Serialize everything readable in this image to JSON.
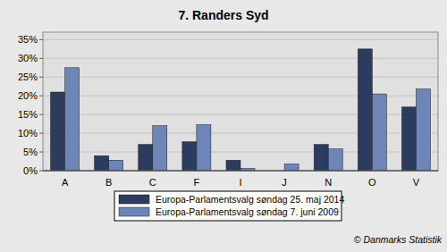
{
  "chart_data": {
    "type": "bar",
    "title": "7. Randers Syd",
    "categories": [
      "A",
      "B",
      "C",
      "F",
      "I",
      "J",
      "N",
      "O",
      "V"
    ],
    "series": [
      {
        "name": "Europa-Parlamentsvalg søndag  25. maj 2014",
        "color": "#2c3c5e",
        "values": [
          21,
          4,
          7,
          7.7,
          2.8,
          0,
          7,
          32.5,
          17
        ]
      },
      {
        "name": "Europa-Parlamentsvalg søndag  7. juni 2009",
        "color": "#6e85b7",
        "values": [
          27.5,
          2.8,
          12,
          12.3,
          0.6,
          1.8,
          5.8,
          20.5,
          21.8
        ]
      }
    ],
    "ylim": [
      0,
      37
    ],
    "yticks": [
      {
        "value": 0,
        "label": "0%"
      },
      {
        "value": 5,
        "label": "5%"
      },
      {
        "value": 10,
        "label": "10%"
      },
      {
        "value": 15,
        "label": "15%"
      },
      {
        "value": 20,
        "label": "20%"
      },
      {
        "value": 25,
        "label": "25%"
      },
      {
        "value": 30,
        "label": "30%"
      },
      {
        "value": 35,
        "label": "35%"
      }
    ],
    "grid": true,
    "legend": "bottom",
    "source": "© Danmarks Statistik"
  }
}
